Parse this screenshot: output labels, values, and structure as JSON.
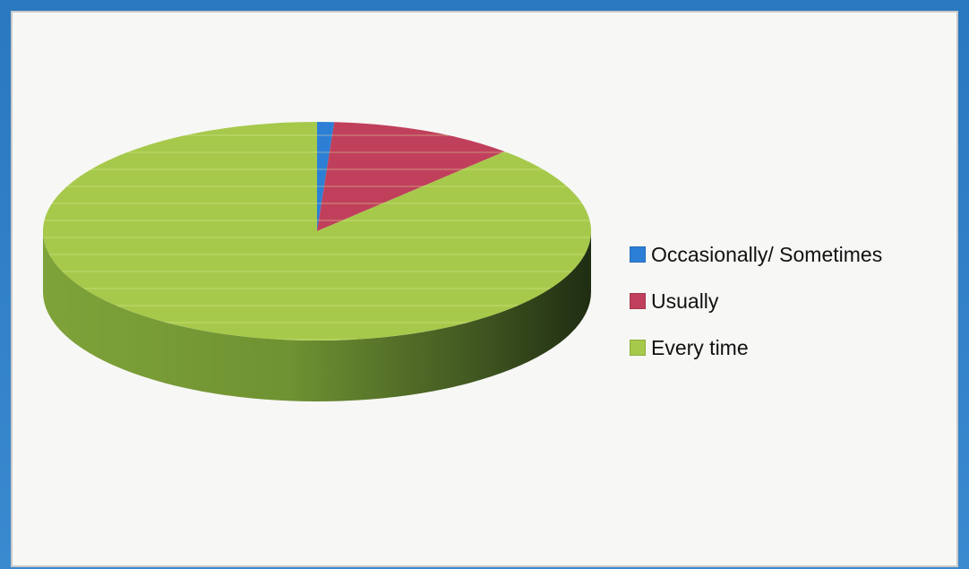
{
  "chart_data": {
    "type": "pie",
    "style": "3d",
    "categories": [
      "Occasionally/ Sometimes",
      "Usually",
      "Every time"
    ],
    "values": [
      1,
      11,
      88
    ],
    "colors": [
      "#2d7fd6",
      "#c0405c",
      "#a6c94b"
    ],
    "legend_position": "right"
  },
  "legend": {
    "items": [
      {
        "label": "Occasionally/ Sometimes",
        "color": "#2d7fd6"
      },
      {
        "label": "Usually",
        "color": "#c0405c"
      },
      {
        "label": "Every time",
        "color": "#a6c94b"
      }
    ]
  }
}
